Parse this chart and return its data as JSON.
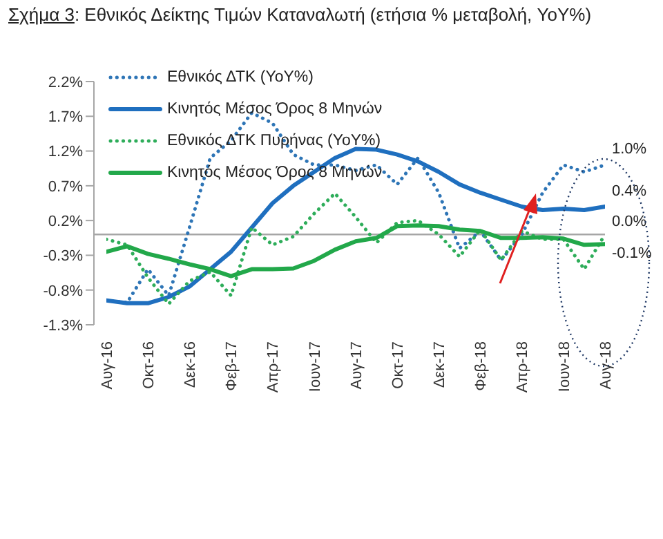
{
  "chart_data": {
    "type": "line",
    "title": "Σχήμα 3: Εθνικός Δείκτης Τιμών Καταναλωτή (ετήσια % μεταβολή, YoY%)",
    "categories": [
      "Αυγ-16",
      null,
      "Οκτ-16",
      null,
      "Δεκ-16",
      null,
      "Φεβ-17",
      null,
      "Απρ-17",
      null,
      "Ιουν-17",
      null,
      "Αυγ-17",
      null,
      "Οκτ-17",
      null,
      "Δεκ-17",
      null,
      "Φεβ-18",
      null,
      "Απρ-18",
      null,
      "Ιουν-18",
      null,
      "Αυγ-18"
    ],
    "series": [
      {
        "name": "Εθνικός ΔΤΚ (YoY%)",
        "color": "#2e75b6",
        "line_style": "dotted",
        "values": [
          -0.95,
          -0.98,
          -0.5,
          -0.88,
          0.1,
          1.1,
          1.35,
          1.75,
          1.6,
          1.15,
          1.0,
          1.0,
          0.92,
          1.0,
          0.72,
          1.1,
          0.6,
          -0.2,
          0.05,
          -0.37,
          0.0,
          0.6,
          1.0,
          0.9,
          1.0
        ]
      },
      {
        "name": "Κινητός Μέσος Όρος 8 Μηνών",
        "color": "#1f6fbf",
        "line_style": "solid",
        "values": [
          -0.95,
          -0.99,
          -0.99,
          -0.9,
          -0.75,
          -0.5,
          -0.25,
          0.1,
          0.45,
          0.7,
          0.9,
          1.1,
          1.23,
          1.22,
          1.15,
          1.05,
          0.9,
          0.72,
          0.6,
          0.5,
          0.4,
          0.35,
          0.37,
          0.35,
          0.4
        ]
      },
      {
        "name": "Εθνικός ΔΤΚ Πυρήνας (YoY%)",
        "color": "#2ead5a",
        "line_style": "dotted",
        "values": [
          -0.07,
          -0.15,
          -0.62,
          -1.0,
          -0.67,
          -0.54,
          -0.88,
          0.1,
          -0.15,
          -0.03,
          0.3,
          0.59,
          0.25,
          -0.12,
          0.17,
          0.2,
          0.0,
          -0.32,
          0.07,
          -0.37,
          0.05,
          -0.07,
          -0.07,
          -0.5,
          0.0
        ]
      },
      {
        "name": "Κινητός Μέσος Όρος 8 Μηνών",
        "color": "#22a84a",
        "line_style": "solid",
        "values": [
          -0.25,
          -0.17,
          -0.28,
          -0.35,
          -0.43,
          -0.5,
          -0.6,
          -0.5,
          -0.5,
          -0.49,
          -0.38,
          -0.22,
          -0.1,
          -0.05,
          0.12,
          0.13,
          0.12,
          0.07,
          0.05,
          -0.05,
          -0.05,
          -0.04,
          -0.06,
          -0.15,
          -0.14
        ]
      }
    ],
    "ylim": [
      -1.3,
      2.2
    ],
    "yticks": [
      {
        "value": -1.3,
        "label": "-1.3%"
      },
      {
        "value": -0.8,
        "label": "-0.8%"
      },
      {
        "value": -0.3,
        "label": "-0.3%"
      },
      {
        "value": 0.2,
        "label": "0.2%"
      },
      {
        "value": 0.7,
        "label": "0.7%"
      },
      {
        "value": 1.2,
        "label": "1.2%"
      },
      {
        "value": 1.7,
        "label": "1.7%"
      },
      {
        "value": 2.2,
        "label": "2.2%"
      }
    ],
    "ref_lines": [
      {
        "axis": "y",
        "value": 0,
        "color": "#a6a6a6"
      }
    ],
    "annotations": [
      {
        "text": "1.0%",
        "x": "Αυγ-18",
        "y": 1.0
      },
      {
        "text": "0.4%",
        "x": "Αυγ-18",
        "y": 0.4
      },
      {
        "text": "0.0%",
        "x": "Αυγ-18",
        "y": 0.0
      },
      {
        "text": "-0.1%",
        "x": "Αυγ-18",
        "y": -0.1
      }
    ],
    "legend": "top left",
    "marker": "none"
  }
}
